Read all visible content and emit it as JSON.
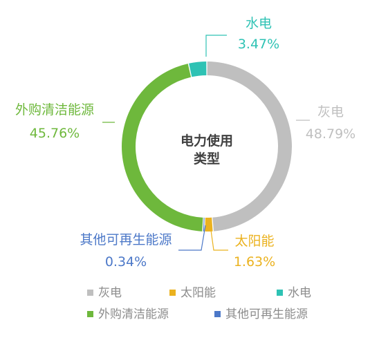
{
  "chart_data": {
    "type": "pie",
    "donut": true,
    "center_label": [
      "电力使用",
      "类型"
    ],
    "slices": [
      {
        "name": "灰电",
        "value": 48.79,
        "label": "48.79%",
        "color": "#BFBFBF"
      },
      {
        "name": "太阳能",
        "value": 1.63,
        "label": "1.63%",
        "color": "#EBB21F"
      },
      {
        "name": "其他可再生能源",
        "value": 0.34,
        "label": "0.34%",
        "color": "#4C78C8"
      },
      {
        "name": "外购清洁能源",
        "value": 45.76,
        "label": "45.76%",
        "color": "#6EB83C"
      },
      {
        "name": "水电",
        "value": 3.47,
        "label": "3.47%",
        "color": "#2EC2B4"
      }
    ],
    "legend": {
      "placement": "bottom",
      "items": [
        "灰电",
        "太阳能",
        "水电",
        "外购清洁能源",
        "其他可再生能源"
      ]
    }
  }
}
